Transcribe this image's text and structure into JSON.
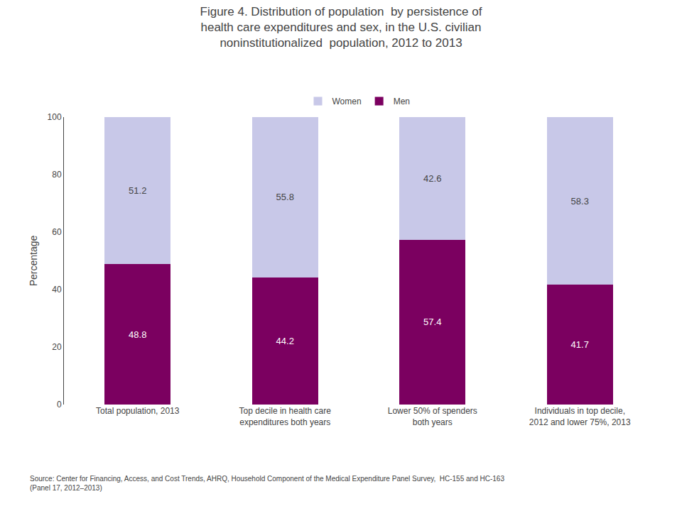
{
  "chart_data": {
    "type": "bar",
    "title": "Figure 4. Distribution of population  by persistence of\nhealth care expenditures and sex, in the U.S. civilian\nnoninstitutionalized  population, 2012 to 2013",
    "categories": [
      "Total population, 2013",
      "Top decile in health care\nexpenditures both years",
      "Lower 50% of spenders\nboth years",
      "Individuals in top decile,\n2012 and lower 75%, 2013"
    ],
    "series": [
      {
        "name": "Men",
        "color": "#7B0060",
        "values": [
          48.8,
          44.2,
          57.4,
          41.7
        ]
      },
      {
        "name": "Women",
        "color": "#C8C8E8",
        "values": [
          51.2,
          55.8,
          42.6,
          58.3
        ]
      }
    ],
    "ylabel": "Percentage",
    "ylim": [
      0,
      100
    ],
    "yticks": [
      0,
      20,
      40,
      60,
      80,
      100
    ],
    "stacked": true,
    "data_labels": true,
    "grid": false,
    "legend": "top",
    "annotations": [
      "Source: Center for Financing, Access, and Cost Trends, AHRQ, Household Component of the Medical Expenditure Panel Survey,  HC-155 and HC-163\n(Panel 17, 2012–2013)"
    ]
  }
}
